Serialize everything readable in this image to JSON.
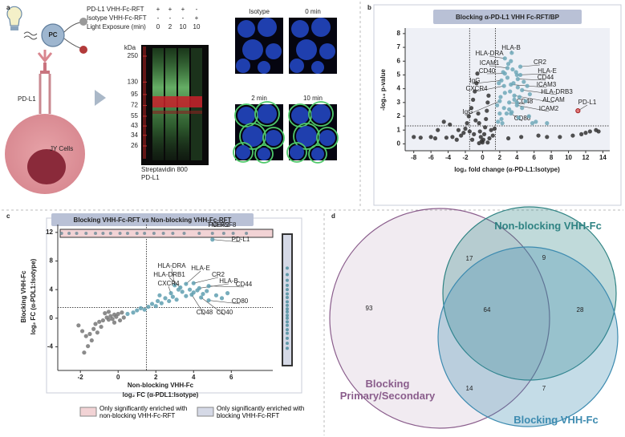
{
  "panel_labels": [
    "a",
    "b",
    "c",
    "d"
  ],
  "panel_a": {
    "rows": [
      {
        "label": "PD-L1 VHH-Fc-RFT",
        "marks": [
          "+",
          "+",
          "+",
          "-"
        ]
      },
      {
        "label": "Isotype VHH-Fc-RFT",
        "marks": [
          "-",
          "-",
          "-",
          "+"
        ]
      },
      {
        "label": "Light Exposure (min)",
        "marks": [
          "0",
          "2",
          "10",
          "10"
        ]
      }
    ],
    "ladder_unit": "kDa",
    "ladder": [
      250,
      130,
      95,
      72,
      55,
      43,
      34,
      26
    ],
    "blot_legend": [
      "Streptavidin 800",
      "PD-L1"
    ],
    "cartoon_labels": [
      "PC",
      "PD-L1",
      "JY Cells"
    ],
    "micrographs": [
      "Isotype",
      "0 min",
      "2 min",
      "10 min"
    ]
  },
  "chart_data": [
    {
      "type": "scatter",
      "title": "Blocking α-PD-L1 VHH Fc-RFT/BP",
      "x_label": [
        "log₂ fold change (α-PD-L1:Isotype)"
      ],
      "y_label": [
        "-log₁₀ p-value"
      ],
      "xlim": [
        -9,
        14.8
      ],
      "ylim": [
        -0.5,
        8.4
      ],
      "xticks": [
        -8,
        -6,
        -4,
        -2,
        0,
        2,
        4,
        6,
        8,
        10,
        12,
        14
      ],
      "yticks": [
        0,
        1,
        2,
        3,
        4,
        5,
        6,
        7,
        8
      ],
      "vlines": [
        -1.5,
        1.5
      ],
      "hlines": [
        1.3
      ],
      "series": [
        {
          "color": "#333333",
          "x": [
            -8,
            -7.2,
            -6,
            -5.5,
            -4.2,
            -3.5,
            -3,
            -2.5,
            -2.2,
            -2,
            -1.8,
            -1.6,
            -1.3,
            -1.1,
            -0.9,
            -0.7,
            -0.6,
            -0.5,
            -0.4,
            -0.3,
            -0.2,
            -0.1,
            0,
            0.1,
            0.2,
            0.3,
            0.4,
            0.5,
            0.6,
            0.7,
            0.8,
            1.0,
            1.2,
            -1.0,
            -1.5,
            -2.8,
            -3.8,
            -5.2,
            -4.5,
            -0.8,
            6.5,
            9,
            10.5,
            11.5,
            12,
            12.5,
            13.2,
            13.5,
            7.5,
            3,
            4.5,
            1.4,
            -1.2,
            0.6,
            -0.4
          ],
          "values": [
            0.5,
            0.45,
            0.5,
            0.4,
            0.45,
            0.5,
            0.3,
            0.6,
            0.8,
            1.1,
            1.5,
            2.0,
            2.6,
            3.2,
            3.8,
            4.4,
            5.1,
            2.2,
            1.5,
            0.9,
            0.5,
            0.2,
            0.1,
            0.3,
            0.7,
            1.2,
            1.8,
            2.4,
            3.0,
            3.5,
            0.4,
            1.0,
            0.6,
            0.7,
            0.9,
            1.0,
            1.4,
            1.0,
            1.6,
            1.7,
            0.6,
            0.5,
            0.6,
            0.7,
            0.8,
            0.9,
            1.0,
            0.9,
            0.5,
            0.4,
            0.5,
            1.1,
            0.3,
            0.1,
            0.05
          ]
        },
        {
          "color": "#6fa8b8",
          "x": [
            2.6,
            3.4,
            4.4,
            2.9,
            2.6,
            4.0,
            2.2,
            4.1,
            2.5,
            3.3,
            4.6,
            3.7,
            2.0,
            3.1,
            4.0,
            3.3,
            1.8,
            2.0,
            2.2,
            2.5,
            2.8,
            3.1,
            3.4,
            3.7,
            4.0,
            4.3,
            4.6,
            5.0,
            5.4,
            5.8,
            6.2,
            2.1,
            2.6,
            3.2,
            3.6,
            4.1,
            3.9,
            3.0,
            3.3,
            4.4,
            2.4,
            1.9,
            5.2,
            2.9,
            3.5,
            4.8,
            5.5,
            1.7,
            2.3,
            4.2,
            7.5
          ],
          "values": [
            6.2,
            6.6,
            5.6,
            5.5,
            5.1,
            5.0,
            4.6,
            4.7,
            4.2,
            4.3,
            3.9,
            3.5,
            3.1,
            3.0,
            2.8,
            2.2,
            1.6,
            2.2,
            1.8,
            2.6,
            2.2,
            2.5,
            2.3,
            3.2,
            3.0,
            3.4,
            2.6,
            3.1,
            2.0,
            1.5,
            1.6,
            3.4,
            3.7,
            3.8,
            4.4,
            4.1,
            5.2,
            5.8,
            6.0,
            5.0,
            5.2,
            4.4,
            4.2,
            4.8,
            5.4,
            4.5,
            3.6,
            2.8,
            1.5,
            1.9,
            1.5
          ],
          "labels": [
            "HLA-DRA",
            "HLA-B",
            "CR2",
            "ICAM1",
            "CD40",
            "HLA-E",
            "IgG",
            "CD44",
            "CXCR4",
            "ICAM3",
            "HLA-DRB3",
            "ALCAM",
            "IgG",
            "CD48",
            "ICAM2",
            "CD80",
            null,
            null,
            null,
            null,
            null,
            null,
            null,
            null,
            null,
            null,
            null,
            null,
            null,
            null,
            null,
            null,
            null,
            null,
            null,
            null,
            null,
            null,
            null,
            null,
            null,
            null,
            null,
            null,
            null,
            null,
            null,
            null,
            null,
            null,
            null
          ]
        },
        {
          "color": "#e06666",
          "x": [
            11.1
          ],
          "values": [
            2.4
          ],
          "labels": [
            "PD-L1"
          ]
        }
      ]
    },
    {
      "type": "scatter",
      "title": "Blocking VHH-Fc-RFT vs Non-blocking VHH-Fc-RFT",
      "x_label": [
        "Non-blocking VHH-Fc",
        "log₂ FC (α-PDL1:Isotype)"
      ],
      "y_label": [
        "Blocking VHH-Fc",
        "log₂ FC (α-PDL1:Isotype)"
      ],
      "xlim": [
        -3.2,
        8.2
      ],
      "ylim": [
        -7.3,
        13.1
      ],
      "xticks": [
        -2,
        0,
        2,
        4,
        6
      ],
      "yticks": [
        -4,
        0,
        4,
        8,
        12
      ],
      "vlines": [
        1.5
      ],
      "hlines": [
        1.5
      ],
      "series": [
        {
          "color": "#777777",
          "x": [
            -1.8,
            -1.6,
            -2.1,
            -1.9,
            -1.7,
            -1.5,
            -1.3,
            -1.2,
            -1.0,
            -0.8,
            -0.6,
            -0.5,
            -0.4,
            -0.3,
            -0.2,
            -0.1,
            0,
            0.1,
            0.2,
            -0.7,
            -1.4,
            -0.9,
            0.3,
            -0.2,
            -0.5,
            -1.1
          ],
          "values": [
            -4.8,
            -3.9,
            -1.0,
            -1.8,
            -2.5,
            -2.2,
            -1.5,
            -0.8,
            -0.5,
            -0.3,
            0.1,
            -0.2,
            0.3,
            -0.1,
            0.5,
            0.2,
            0.6,
            -0.3,
            0.8,
            0.7,
            -3.1,
            -1.2,
            0.1,
            -0.6,
            0.9,
            -2.0
          ]
        },
        {
          "color": "#5f9fb0",
          "x": [
            5.0,
            3.0,
            3.3,
            3.6,
            2.8,
            4.0,
            4.3,
            4.8,
            4.8,
            3.9,
            4.4,
            0.5,
            0.8,
            1.0,
            1.2,
            1.4,
            1.6,
            1.8,
            2.0,
            2.1,
            2.3,
            2.5,
            2.7,
            2.9,
            3.1,
            3.4,
            3.6,
            3.8,
            4.0,
            4.2,
            4.5,
            4.7,
            5.2,
            5.5,
            5.8,
            2.2,
            3.2
          ],
          "values": [
            11.0,
            4.6,
            4.3,
            4.8,
            3.5,
            4.9,
            4.2,
            4.5,
            2.5,
            3.3,
            2.9,
            0.6,
            0.8,
            1.1,
            1.4,
            1.2,
            1.6,
            2.0,
            1.7,
            2.4,
            2.1,
            2.8,
            2.4,
            3.0,
            2.6,
            3.7,
            3.1,
            4.0,
            3.6,
            3.9,
            3.4,
            3.8,
            3.2,
            2.8,
            3.5,
            3.2,
            4.0
          ],
          "labels": [
            "PD-L1",
            "HLA-DRA",
            "HLA-DRB1",
            "HLA-E",
            "CXCR4",
            "CR2",
            "HLA-B",
            "CD44",
            "CD80",
            "CD48",
            "CD40",
            null,
            null,
            null,
            null,
            null,
            null,
            null,
            null,
            null,
            null,
            null,
            null,
            null,
            null,
            null,
            null,
            null,
            null,
            null,
            null,
            null,
            null,
            null,
            null,
            null,
            null
          ]
        }
      ],
      "rugs": [
        {
          "name": "Only significantly enriched with non-blocking VHH-Fc-RFT",
          "color": "#f2d3d5",
          "axis": "x",
          "values": [
            -3.0,
            -2.6,
            -2.2,
            -1.7,
            -1.2,
            -0.8,
            -0.4,
            0.1,
            0.5,
            1.0,
            1.4,
            1.9,
            2.4,
            2.9,
            3.5,
            4.3,
            5.0,
            5.6,
            6.1,
            6.8
          ],
          "labels": [
            null,
            null,
            null,
            null,
            null,
            null,
            null,
            null,
            null,
            null,
            null,
            null,
            null,
            null,
            null,
            "TNFRSF8",
            "FCER2",
            null,
            null,
            null
          ]
        },
        {
          "name": "Only significantly enriched with blocking VHH-Fc-RFT",
          "color": "#d5d9e6",
          "axis": "y",
          "values": [
            -4.2,
            -3.5,
            -2.8,
            -2.1,
            -1.6,
            -1.0,
            -0.5,
            0,
            0.4,
            0.9,
            1.3,
            1.8,
            2.3,
            2.9,
            3.4,
            4.0,
            4.6,
            5.3,
            6.1,
            7.0
          ]
        }
      ]
    },
    {
      "type": "venn",
      "sets": [
        {
          "name": "Blocking Primary/Secondary",
          "color": "#8a5d8c"
        },
        {
          "name": "Non-blocking VHH-Fc",
          "color": "#2f8383"
        },
        {
          "name": "Blocking VHH-Fc",
          "color": "#3d8bb0"
        }
      ],
      "regions": [
        {
          "in": [
            0
          ],
          "value": 93
        },
        {
          "in": [
            0,
            1
          ],
          "value": 17
        },
        {
          "in": [
            1
          ],
          "value": 9
        },
        {
          "in": [
            0,
            1,
            2
          ],
          "value": 64
        },
        {
          "in": [
            1,
            2
          ],
          "value": 28
        },
        {
          "in": [
            0,
            2
          ],
          "value": 14
        },
        {
          "in": [
            2
          ],
          "value": 7
        }
      ]
    }
  ]
}
